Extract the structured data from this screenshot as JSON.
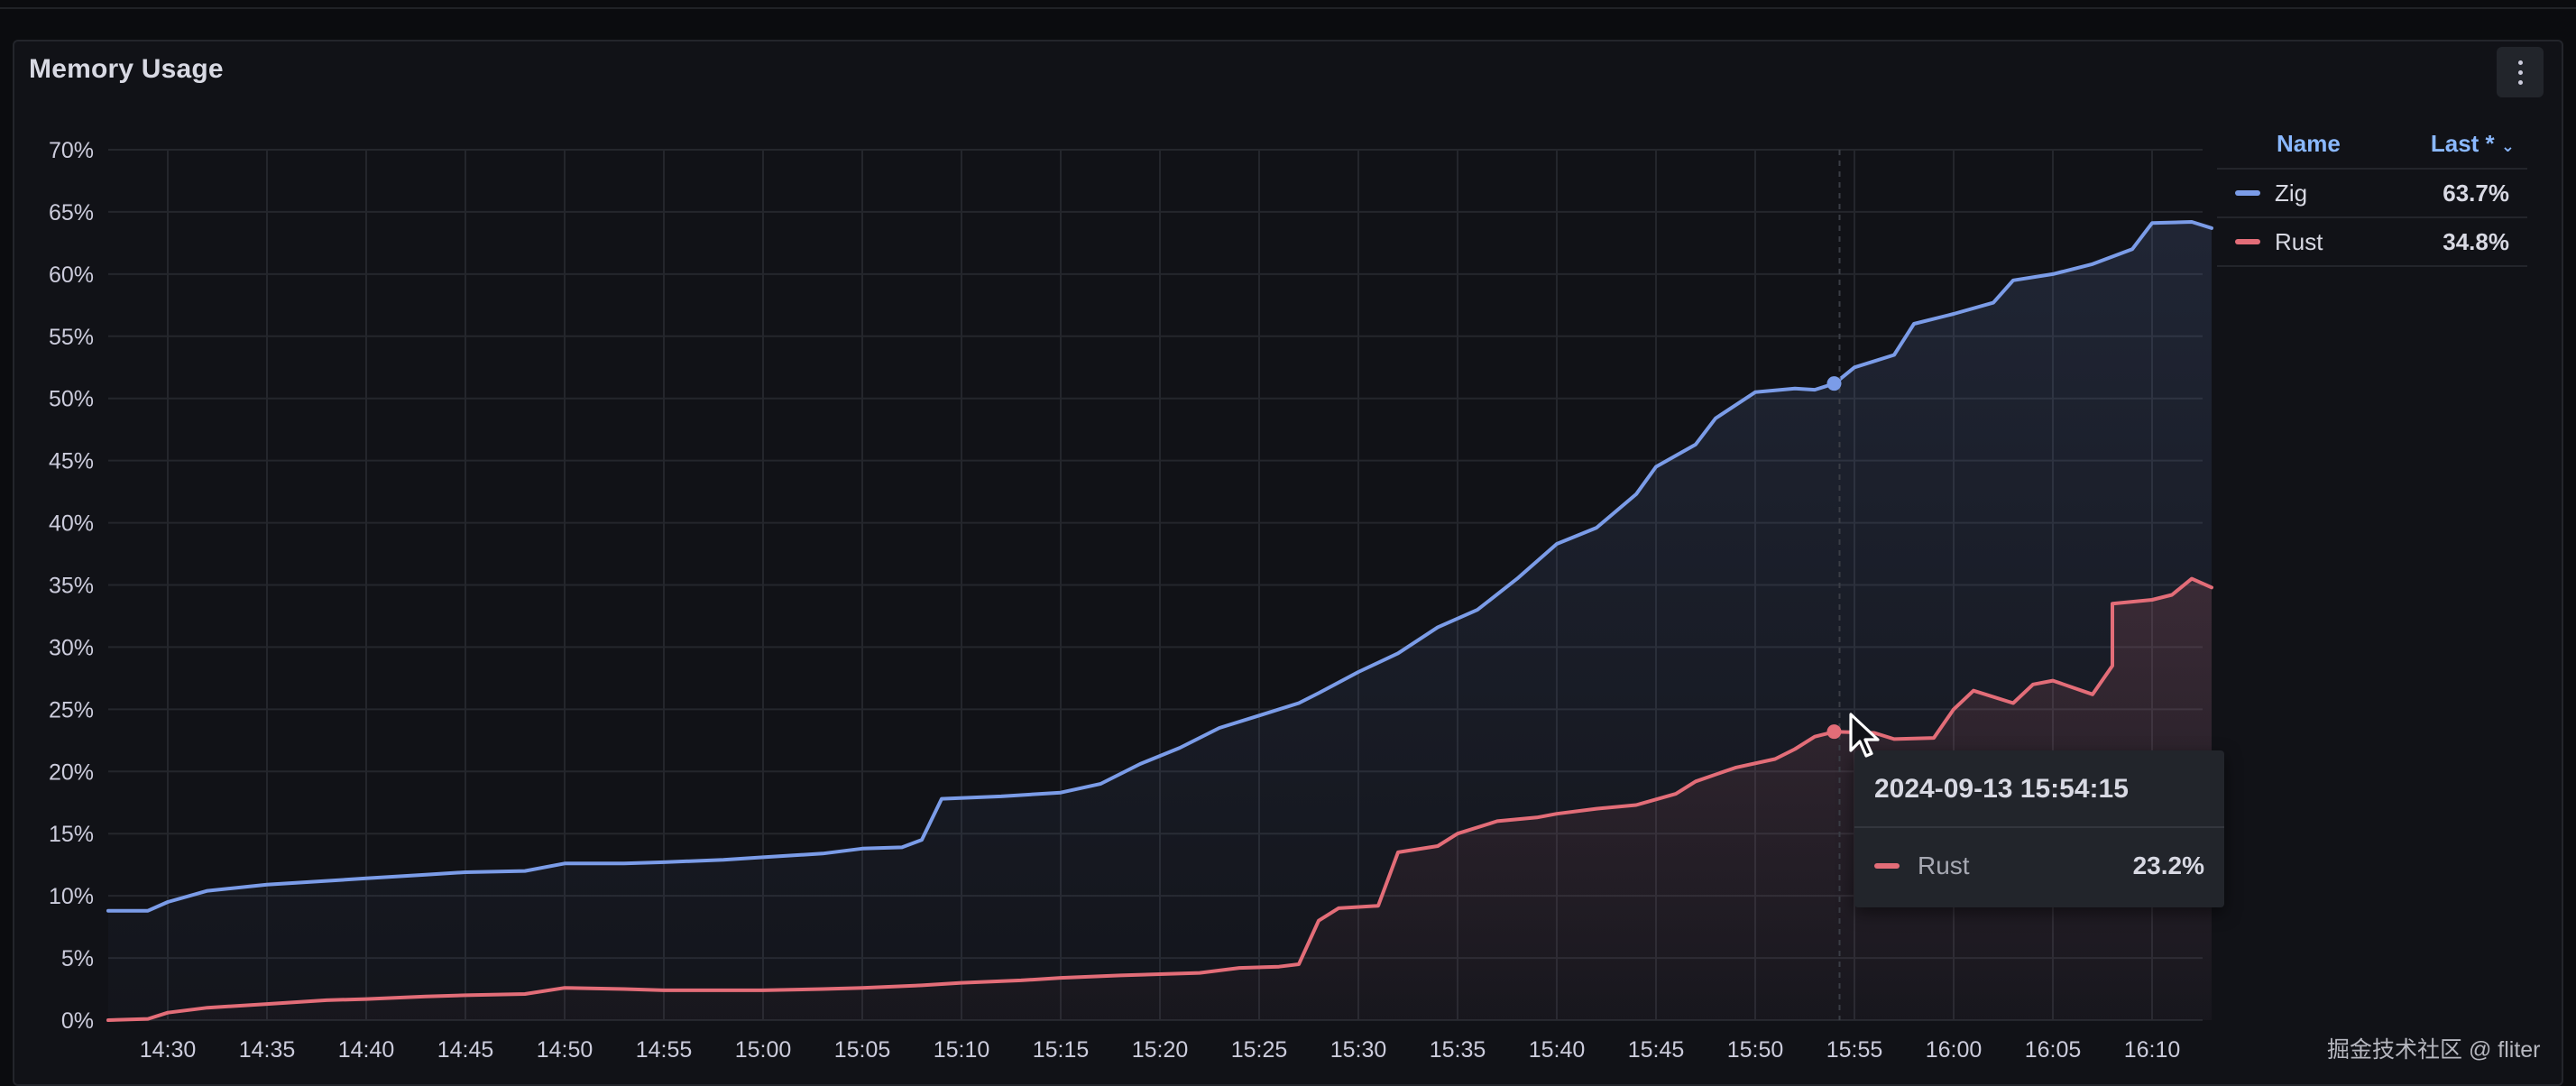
{
  "panel": {
    "title": "Memory Usage"
  },
  "legend": {
    "name_header": "Name",
    "last_header": "Last *",
    "sort_icon": "chevron-down-icon",
    "items": [
      {
        "name": "Zig",
        "last": "63.7%",
        "color": "#7b9ce8"
      },
      {
        "name": "Rust",
        "last": "34.8%",
        "color": "#e36d78"
      }
    ]
  },
  "tooltip": {
    "time": "2024-09-13 15:54:15",
    "series": "Rust",
    "value": "23.2%",
    "color": "#e36d78"
  },
  "watermark": "掘金技术社区 @ fliter",
  "chart_data": {
    "type": "line",
    "title": "Memory Usage",
    "xlabel": "",
    "ylabel": "",
    "x_ticks": [
      "14:30",
      "14:35",
      "14:40",
      "14:45",
      "14:50",
      "14:55",
      "15:00",
      "15:05",
      "15:10",
      "15:15",
      "15:20",
      "15:25",
      "15:30",
      "15:35",
      "15:40",
      "15:45",
      "15:50",
      "15:55",
      "16:00",
      "16:05",
      "16:10"
    ],
    "y_ticks": [
      "0%",
      "5%",
      "10%",
      "15%",
      "20%",
      "25%",
      "30%",
      "35%",
      "40%",
      "45%",
      "50%",
      "55%",
      "60%",
      "65%",
      "70%"
    ],
    "xlim": [
      "14:30",
      "16:13"
    ],
    "ylim": [
      0,
      70
    ],
    "grid": true,
    "legend_position": "right",
    "hover_time": "15:54:15",
    "series": [
      {
        "name": "Zig",
        "color": "#7b9ce8",
        "points": [
          [
            "14:27",
            8.8
          ],
          [
            "14:29",
            8.8
          ],
          [
            "14:30",
            9.5
          ],
          [
            "14:32",
            10.4
          ],
          [
            "14:35",
            10.9
          ],
          [
            "14:38",
            11.2
          ],
          [
            "14:40",
            11.4
          ],
          [
            "14:43",
            11.7
          ],
          [
            "14:45",
            11.9
          ],
          [
            "14:48",
            12.0
          ],
          [
            "14:50",
            12.6
          ],
          [
            "14:53",
            12.6
          ],
          [
            "14:55",
            12.7
          ],
          [
            "14:58",
            12.9
          ],
          [
            "15:00",
            13.1
          ],
          [
            "15:03",
            13.4
          ],
          [
            "15:05",
            13.8
          ],
          [
            "15:07",
            13.9
          ],
          [
            "15:08",
            14.5
          ],
          [
            "15:09",
            17.8
          ],
          [
            "15:12",
            18.0
          ],
          [
            "15:15",
            18.3
          ],
          [
            "15:17",
            19.0
          ],
          [
            "15:19",
            20.6
          ],
          [
            "15:21",
            21.9
          ],
          [
            "15:23",
            23.5
          ],
          [
            "15:25",
            24.5
          ],
          [
            "15:27",
            25.5
          ],
          [
            "15:28",
            26.3
          ],
          [
            "15:30",
            28.0
          ],
          [
            "15:32",
            29.5
          ],
          [
            "15:34",
            31.6
          ],
          [
            "15:36",
            33.0
          ],
          [
            "15:38",
            35.5
          ],
          [
            "15:40",
            38.3
          ],
          [
            "15:42",
            39.6
          ],
          [
            "15:44",
            42.3
          ],
          [
            "15:45",
            44.5
          ],
          [
            "15:47",
            46.3
          ],
          [
            "15:48",
            48.4
          ],
          [
            "15:50",
            50.5
          ],
          [
            "15:52",
            50.8
          ],
          [
            "15:53",
            50.7
          ],
          [
            "15:54",
            51.2
          ],
          [
            "15:55",
            52.5
          ],
          [
            "15:57",
            53.5
          ],
          [
            "15:58",
            56.0
          ],
          [
            "16:00",
            56.8
          ],
          [
            "16:02",
            57.7
          ],
          [
            "16:03",
            59.5
          ],
          [
            "16:05",
            60.0
          ],
          [
            "16:07",
            60.8
          ],
          [
            "16:09",
            62.0
          ],
          [
            "16:10",
            64.1
          ],
          [
            "16:12",
            64.2
          ],
          [
            "16:13",
            63.7
          ]
        ]
      },
      {
        "name": "Rust",
        "color": "#e36d78",
        "points": [
          [
            "14:27",
            0.0
          ],
          [
            "14:29",
            0.1
          ],
          [
            "14:30",
            0.6
          ],
          [
            "14:32",
            1.0
          ],
          [
            "14:35",
            1.3
          ],
          [
            "14:38",
            1.6
          ],
          [
            "14:40",
            1.7
          ],
          [
            "14:43",
            1.9
          ],
          [
            "14:45",
            2.0
          ],
          [
            "14:48",
            2.1
          ],
          [
            "14:50",
            2.6
          ],
          [
            "14:53",
            2.5
          ],
          [
            "14:55",
            2.4
          ],
          [
            "14:58",
            2.4
          ],
          [
            "15:00",
            2.4
          ],
          [
            "15:03",
            2.5
          ],
          [
            "15:05",
            2.6
          ],
          [
            "15:08",
            2.8
          ],
          [
            "15:10",
            3.0
          ],
          [
            "15:13",
            3.2
          ],
          [
            "15:15",
            3.4
          ],
          [
            "15:18",
            3.6
          ],
          [
            "15:20",
            3.7
          ],
          [
            "15:22",
            3.8
          ],
          [
            "15:24",
            4.2
          ],
          [
            "15:26",
            4.3
          ],
          [
            "15:27",
            4.5
          ],
          [
            "15:28",
            8.0
          ],
          [
            "15:29",
            9.0
          ],
          [
            "15:31",
            9.2
          ],
          [
            "15:32",
            13.5
          ],
          [
            "15:34",
            14.0
          ],
          [
            "15:35",
            15.0
          ],
          [
            "15:37",
            16.0
          ],
          [
            "15:39",
            16.3
          ],
          [
            "15:40",
            16.6
          ],
          [
            "15:42",
            17.0
          ],
          [
            "15:44",
            17.3
          ],
          [
            "15:46",
            18.2
          ],
          [
            "15:47",
            19.2
          ],
          [
            "15:49",
            20.3
          ],
          [
            "15:51",
            21.0
          ],
          [
            "15:52",
            21.8
          ],
          [
            "15:53",
            22.8
          ],
          [
            "15:54",
            23.2
          ],
          [
            "15:56",
            23.1
          ],
          [
            "15:57",
            22.6
          ],
          [
            "15:59",
            22.7
          ],
          [
            "16:00",
            25.0
          ],
          [
            "16:01",
            26.5
          ],
          [
            "16:03",
            25.5
          ],
          [
            "16:04",
            27.0
          ],
          [
            "16:05",
            27.3
          ],
          [
            "16:07",
            26.2
          ],
          [
            "16:08",
            28.5
          ],
          [
            "16:08",
            33.5
          ],
          [
            "16:10",
            33.8
          ],
          [
            "16:11",
            34.2
          ],
          [
            "16:12",
            35.5
          ],
          [
            "16:13",
            34.8
          ]
        ]
      }
    ]
  }
}
